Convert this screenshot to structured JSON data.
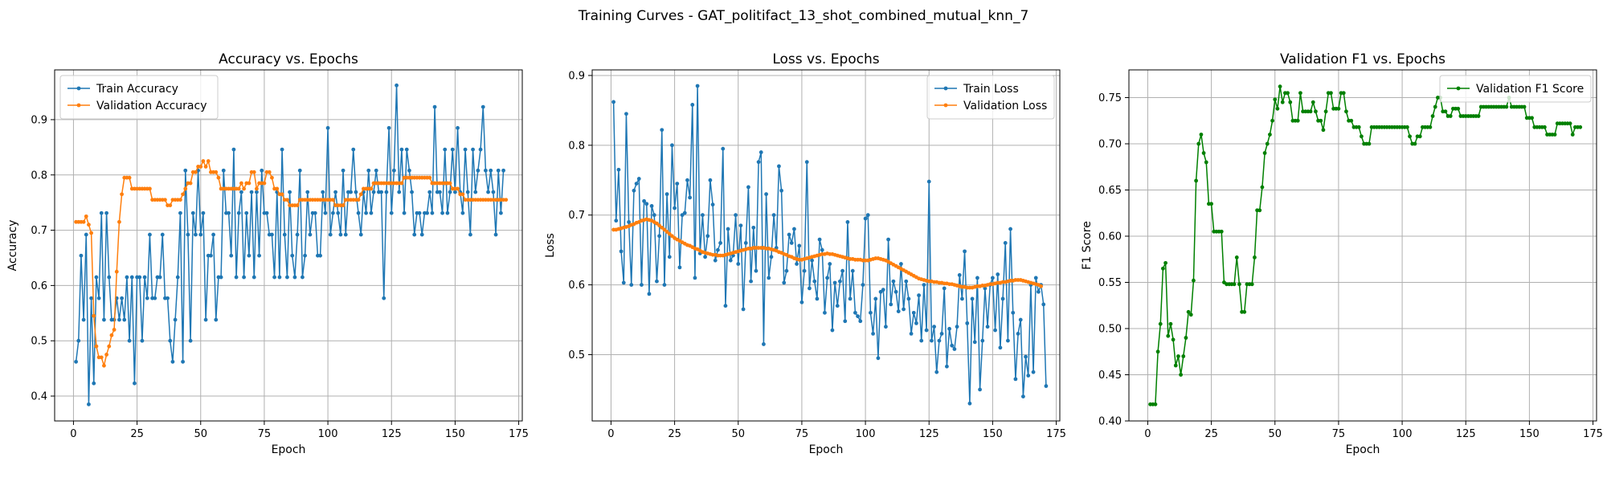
{
  "figure": {
    "title": "Training Curves - GAT_politifact_13_shot_combined_mutual_knn_7"
  },
  "colors": {
    "blue": "#1f77b4",
    "orange": "#ff7f0e",
    "green": "#008000"
  },
  "chart_data": [
    {
      "type": "line",
      "title": "Accuracy vs. Epochs",
      "xlabel": "Epoch",
      "ylabel": "Accuracy",
      "xlim": [
        -7.4,
        176.4
      ],
      "ylim": [
        0.355,
        0.99
      ],
      "xticks": [
        0,
        25,
        50,
        75,
        100,
        125,
        150,
        175
      ],
      "yticks": [
        0.4,
        0.5,
        0.6,
        0.7,
        0.8,
        0.9
      ],
      "ytick_decimals": 1,
      "grid": true,
      "legend_position": "top-left",
      "series": [
        {
          "name": "Train Accuracy",
          "color": "#1f77b4",
          "x_start": 1,
          "values": [
            0.462,
            0.5,
            0.654,
            0.538,
            0.692,
            0.385,
            0.577,
            0.423,
            0.615,
            0.577,
            0.731,
            0.538,
            0.731,
            0.615,
            0.538,
            0.538,
            0.577,
            0.538,
            0.577,
            0.538,
            0.615,
            0.5,
            0.615,
            0.423,
            0.615,
            0.615,
            0.5,
            0.615,
            0.577,
            0.692,
            0.577,
            0.577,
            0.615,
            0.615,
            0.692,
            0.577,
            0.577,
            0.5,
            0.462,
            0.538,
            0.615,
            0.731,
            0.462,
            0.808,
            0.692,
            0.5,
            0.731,
            0.692,
            0.808,
            0.692,
            0.731,
            0.538,
            0.654,
            0.654,
            0.692,
            0.538,
            0.615,
            0.615,
            0.808,
            0.731,
            0.731,
            0.654,
            0.846,
            0.615,
            0.731,
            0.769,
            0.615,
            0.731,
            0.654,
            0.769,
            0.615,
            0.769,
            0.654,
            0.808,
            0.731,
            0.731,
            0.692,
            0.692,
            0.615,
            0.769,
            0.615,
            0.846,
            0.692,
            0.615,
            0.769,
            0.654,
            0.615,
            0.692,
            0.808,
            0.615,
            0.654,
            0.769,
            0.692,
            0.731,
            0.731,
            0.654,
            0.654,
            0.769,
            0.731,
            0.885,
            0.692,
            0.731,
            0.769,
            0.731,
            0.692,
            0.808,
            0.692,
            0.769,
            0.769,
            0.846,
            0.769,
            0.731,
            0.692,
            0.769,
            0.731,
            0.808,
            0.731,
            0.769,
            0.808,
            0.769,
            0.769,
            0.577,
            0.769,
            0.885,
            0.731,
            0.808,
            0.962,
            0.769,
            0.846,
            0.731,
            0.846,
            0.808,
            0.769,
            0.692,
            0.731,
            0.731,
            0.692,
            0.731,
            0.731,
            0.769,
            0.731,
            0.923,
            0.769,
            0.769,
            0.731,
            0.846,
            0.731,
            0.769,
            0.846,
            0.769,
            0.885,
            0.769,
            0.731,
            0.846,
            0.769,
            0.692,
            0.846,
            0.769,
            0.808,
            0.846,
            0.923,
            0.808,
            0.769,
            0.808,
            0.769,
            0.692,
            0.808,
            0.731,
            0.808
          ]
        },
        {
          "name": "Validation Accuracy",
          "color": "#ff7f0e",
          "x_start": 1,
          "values": [
            0.715,
            0.715,
            0.715,
            0.715,
            0.725,
            0.71,
            0.695,
            0.545,
            0.49,
            0.47,
            0.47,
            0.455,
            0.475,
            0.49,
            0.51,
            0.52,
            0.625,
            0.715,
            0.765,
            0.795,
            0.795,
            0.795,
            0.775,
            0.775,
            0.775,
            0.775,
            0.775,
            0.775,
            0.775,
            0.775,
            0.755,
            0.755,
            0.755,
            0.755,
            0.755,
            0.755,
            0.745,
            0.745,
            0.755,
            0.755,
            0.755,
            0.755,
            0.765,
            0.775,
            0.785,
            0.785,
            0.805,
            0.805,
            0.815,
            0.815,
            0.825,
            0.815,
            0.825,
            0.805,
            0.805,
            0.805,
            0.795,
            0.775,
            0.775,
            0.775,
            0.775,
            0.775,
            0.775,
            0.775,
            0.775,
            0.785,
            0.775,
            0.785,
            0.785,
            0.805,
            0.805,
            0.775,
            0.785,
            0.785,
            0.785,
            0.805,
            0.805,
            0.795,
            0.775,
            0.775,
            0.765,
            0.765,
            0.755,
            0.755,
            0.745,
            0.745,
            0.745,
            0.745,
            0.755,
            0.755,
            0.755,
            0.755,
            0.755,
            0.755,
            0.755,
            0.755,
            0.755,
            0.755,
            0.755,
            0.755,
            0.755,
            0.755,
            0.745,
            0.745,
            0.745,
            0.745,
            0.755,
            0.755,
            0.755,
            0.755,
            0.755,
            0.755,
            0.765,
            0.775,
            0.775,
            0.775,
            0.775,
            0.785,
            0.785,
            0.785,
            0.785,
            0.785,
            0.785,
            0.785,
            0.785,
            0.785,
            0.785,
            0.785,
            0.785,
            0.795,
            0.795,
            0.795,
            0.795,
            0.795,
            0.795,
            0.795,
            0.795,
            0.795,
            0.795,
            0.795,
            0.785,
            0.785,
            0.785,
            0.785,
            0.785,
            0.785,
            0.785,
            0.785,
            0.775,
            0.775,
            0.775,
            0.765,
            0.765,
            0.755,
            0.755,
            0.755,
            0.755,
            0.755,
            0.755,
            0.755,
            0.755,
            0.755,
            0.755,
            0.755,
            0.755,
            0.755,
            0.755,
            0.755,
            0.755,
            0.755
          ]
        }
      ]
    },
    {
      "type": "line",
      "title": "Loss vs. Epochs",
      "xlabel": "Epoch",
      "ylabel": "Loss",
      "xlim": [
        -7.4,
        176.4
      ],
      "ylim": [
        0.405,
        0.908
      ],
      "xticks": [
        0,
        25,
        50,
        75,
        100,
        125,
        150,
        175
      ],
      "yticks": [
        0.5,
        0.6,
        0.7,
        0.8,
        0.9
      ],
      "ytick_decimals": 1,
      "grid": true,
      "legend_position": "top-right",
      "series": [
        {
          "name": "Train Loss",
          "color": "#1f77b4",
          "x_start": 1,
          "values": [
            0.862,
            0.692,
            0.765,
            0.648,
            0.603,
            0.845,
            0.69,
            0.6,
            0.735,
            0.745,
            0.752,
            0.6,
            0.72,
            0.716,
            0.587,
            0.713,
            0.7,
            0.605,
            0.67,
            0.822,
            0.6,
            0.73,
            0.64,
            0.8,
            0.71,
            0.745,
            0.625,
            0.7,
            0.703,
            0.75,
            0.725,
            0.858,
            0.61,
            0.885,
            0.645,
            0.7,
            0.64,
            0.67,
            0.75,
            0.715,
            0.635,
            0.65,
            0.66,
            0.795,
            0.57,
            0.68,
            0.635,
            0.642,
            0.7,
            0.63,
            0.685,
            0.565,
            0.66,
            0.74,
            0.605,
            0.682,
            0.62,
            0.776,
            0.79,
            0.515,
            0.73,
            0.61,
            0.64,
            0.7,
            0.653,
            0.77,
            0.735,
            0.603,
            0.62,
            0.672,
            0.66,
            0.68,
            0.63,
            0.656,
            0.575,
            0.62,
            0.776,
            0.595,
            0.635,
            0.605,
            0.58,
            0.665,
            0.65,
            0.56,
            0.61,
            0.63,
            0.535,
            0.603,
            0.57,
            0.605,
            0.62,
            0.548,
            0.69,
            0.58,
            0.62,
            0.56,
            0.555,
            0.548,
            0.6,
            0.695,
            0.7,
            0.56,
            0.53,
            0.58,
            0.495,
            0.59,
            0.593,
            0.54,
            0.665,
            0.572,
            0.605,
            0.59,
            0.562,
            0.63,
            0.565,
            0.605,
            0.58,
            0.53,
            0.56,
            0.545,
            0.585,
            0.52,
            0.6,
            0.535,
            0.748,
            0.52,
            0.54,
            0.475,
            0.52,
            0.53,
            0.595,
            0.483,
            0.537,
            0.513,
            0.508,
            0.54,
            0.614,
            0.58,
            0.648,
            0.545,
            0.43,
            0.58,
            0.518,
            0.61,
            0.45,
            0.52,
            0.595,
            0.54,
            0.6,
            0.61,
            0.535,
            0.615,
            0.51,
            0.58,
            0.66,
            0.52,
            0.68,
            0.56,
            0.465,
            0.53,
            0.55,
            0.44,
            0.497,
            0.47,
            0.6,
            0.475,
            0.61,
            0.59,
            0.6,
            0.572,
            0.455
          ]
        },
        {
          "name": "Validation Loss",
          "color": "#ff7f0e",
          "x_start": 1,
          "values": [
            0.679,
            0.679,
            0.68,
            0.681,
            0.682,
            0.683,
            0.684,
            0.686,
            0.687,
            0.689,
            0.69,
            0.692,
            0.693,
            0.694,
            0.693,
            0.692,
            0.69,
            0.688,
            0.685,
            0.682,
            0.679,
            0.676,
            0.673,
            0.67,
            0.667,
            0.665,
            0.663,
            0.661,
            0.659,
            0.657,
            0.656,
            0.654,
            0.652,
            0.651,
            0.649,
            0.647,
            0.646,
            0.645,
            0.644,
            0.643,
            0.643,
            0.642,
            0.642,
            0.642,
            0.643,
            0.644,
            0.645,
            0.646,
            0.647,
            0.648,
            0.649,
            0.65,
            0.651,
            0.652,
            0.652,
            0.653,
            0.653,
            0.653,
            0.653,
            0.653,
            0.652,
            0.652,
            0.651,
            0.65,
            0.649,
            0.647,
            0.646,
            0.644,
            0.643,
            0.641,
            0.64,
            0.638,
            0.637,
            0.636,
            0.636,
            0.637,
            0.638,
            0.639,
            0.64,
            0.641,
            0.642,
            0.643,
            0.644,
            0.644,
            0.645,
            0.644,
            0.644,
            0.643,
            0.642,
            0.641,
            0.64,
            0.639,
            0.638,
            0.637,
            0.637,
            0.636,
            0.636,
            0.636,
            0.635,
            0.635,
            0.635,
            0.636,
            0.637,
            0.638,
            0.638,
            0.637,
            0.636,
            0.635,
            0.633,
            0.631,
            0.629,
            0.627,
            0.625,
            0.623,
            0.621,
            0.619,
            0.617,
            0.615,
            0.613,
            0.611,
            0.609,
            0.608,
            0.607,
            0.606,
            0.605,
            0.605,
            0.604,
            0.604,
            0.603,
            0.603,
            0.602,
            0.602,
            0.601,
            0.601,
            0.6,
            0.599,
            0.598,
            0.597,
            0.597,
            0.596,
            0.596,
            0.596,
            0.597,
            0.598,
            0.598,
            0.599,
            0.599,
            0.6,
            0.601,
            0.601,
            0.602,
            0.603,
            0.603,
            0.604,
            0.604,
            0.605,
            0.606,
            0.606,
            0.607,
            0.607,
            0.607,
            0.606,
            0.605,
            0.604,
            0.603,
            0.602,
            0.601,
            0.6,
            0.598
          ]
        }
      ]
    },
    {
      "type": "line",
      "title": "Validation F1 vs. Epochs",
      "xlabel": "Epoch",
      "ylabel": "F1 Score",
      "xlim": [
        -7.4,
        176.4
      ],
      "ylim": [
        0.4,
        0.78
      ],
      "xticks": [
        0,
        25,
        50,
        75,
        100,
        125,
        150,
        175
      ],
      "yticks": [
        0.4,
        0.45,
        0.5,
        0.55,
        0.6,
        0.65,
        0.7,
        0.75
      ],
      "ytick_decimals": 2,
      "grid": true,
      "legend_position": "top-right",
      "series": [
        {
          "name": "Validation F1 Score",
          "color": "#008000",
          "x_start": 1,
          "values": [
            0.418,
            0.418,
            0.418,
            0.475,
            0.505,
            0.565,
            0.571,
            0.492,
            0.505,
            0.488,
            0.46,
            0.47,
            0.45,
            0.47,
            0.49,
            0.518,
            0.515,
            0.552,
            0.66,
            0.7,
            0.71,
            0.69,
            0.68,
            0.635,
            0.635,
            0.605,
            0.605,
            0.605,
            0.605,
            0.55,
            0.548,
            0.548,
            0.548,
            0.548,
            0.577,
            0.548,
            0.518,
            0.518,
            0.548,
            0.548,
            0.548,
            0.577,
            0.628,
            0.628,
            0.653,
            0.69,
            0.7,
            0.71,
            0.725,
            0.748,
            0.738,
            0.762,
            0.745,
            0.755,
            0.755,
            0.745,
            0.725,
            0.725,
            0.725,
            0.755,
            0.735,
            0.735,
            0.735,
            0.735,
            0.745,
            0.735,
            0.725,
            0.725,
            0.715,
            0.735,
            0.755,
            0.755,
            0.738,
            0.738,
            0.738,
            0.755,
            0.755,
            0.735,
            0.725,
            0.725,
            0.718,
            0.718,
            0.718,
            0.708,
            0.7,
            0.7,
            0.7,
            0.718,
            0.718,
            0.718,
            0.718,
            0.718,
            0.718,
            0.718,
            0.718,
            0.718,
            0.718,
            0.718,
            0.718,
            0.718,
            0.718,
            0.718,
            0.708,
            0.7,
            0.7,
            0.708,
            0.708,
            0.718,
            0.718,
            0.718,
            0.718,
            0.73,
            0.74,
            0.75,
            0.75,
            0.735,
            0.735,
            0.73,
            0.73,
            0.738,
            0.738,
            0.738,
            0.73,
            0.73,
            0.73,
            0.73,
            0.73,
            0.73,
            0.73,
            0.73,
            0.74,
            0.74,
            0.74,
            0.74,
            0.74,
            0.74,
            0.74,
            0.74,
            0.74,
            0.74,
            0.74,
            0.75,
            0.74,
            0.74,
            0.74,
            0.74,
            0.74,
            0.74,
            0.728,
            0.728,
            0.728,
            0.718,
            0.718,
            0.718,
            0.718,
            0.718,
            0.71,
            0.71,
            0.71,
            0.71,
            0.722,
            0.722,
            0.722,
            0.722,
            0.722,
            0.722,
            0.71,
            0.718,
            0.718,
            0.718
          ]
        }
      ]
    }
  ]
}
